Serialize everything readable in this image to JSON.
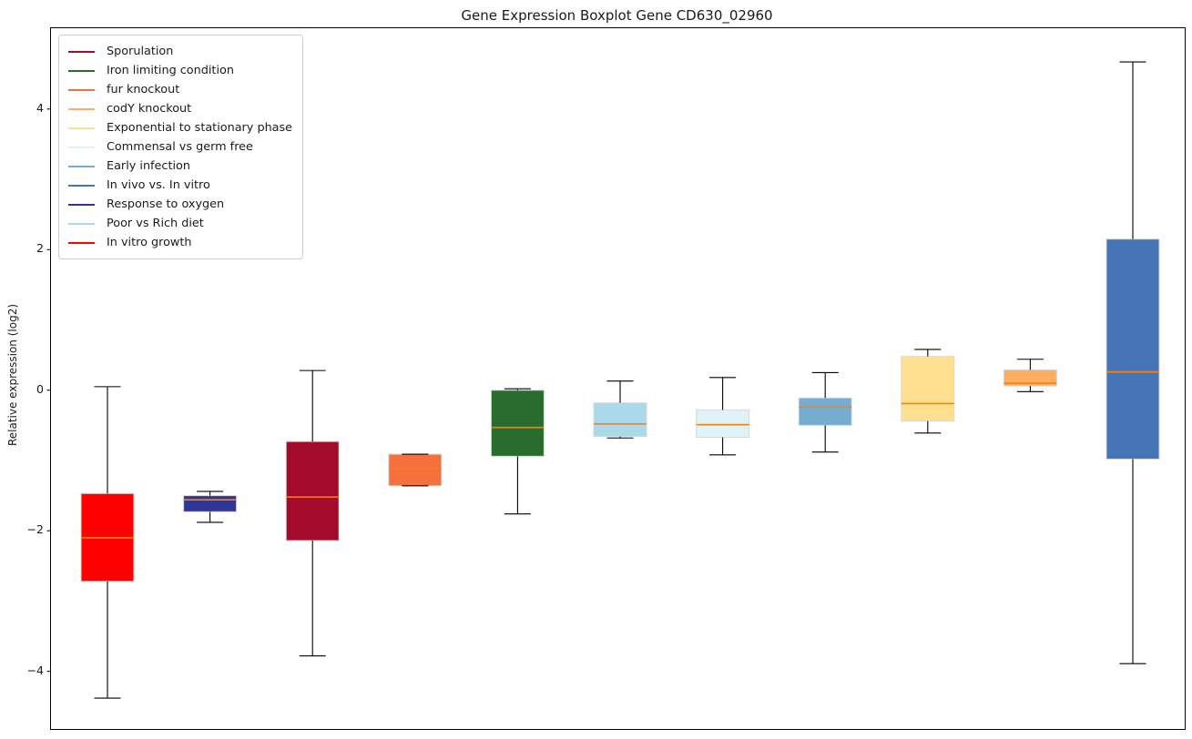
{
  "chart_data": {
    "type": "boxplot",
    "title": "Gene Expression Boxplot Gene CD630_02960",
    "xlabel": "",
    "ylabel": "Relative expression (log2)",
    "ylim": [
      -4.82,
      5.15
    ],
    "grid": false,
    "legend_position": "upper left",
    "yticks": [
      {
        "value": 4,
        "label": "4"
      },
      {
        "value": 2,
        "label": "2"
      },
      {
        "value": 0,
        "label": "0"
      },
      {
        "value": -2,
        "label": "−2"
      },
      {
        "value": -4,
        "label": "−4"
      }
    ],
    "style": {
      "median_color": "#ff7f0e",
      "whisker_color": "#000000",
      "box_edge_color": "#d9d9d9"
    },
    "series": [
      {
        "label": "In vitro growth",
        "color": "#ff0000",
        "whislo": -4.38,
        "q1": -2.72,
        "med": -2.1,
        "q3": -1.47,
        "whishi": 0.05
      },
      {
        "label": "Response to oxygen",
        "color": "#313695",
        "whislo": -1.88,
        "q1": -1.73,
        "med": -1.56,
        "q3": -1.5,
        "whishi": -1.44
      },
      {
        "label": "Sporulation",
        "color": "#a30b2d",
        "whislo": -3.78,
        "q1": -2.14,
        "med": -1.52,
        "q3": -0.73,
        "whishi": 0.28
      },
      {
        "label": "fur knockout",
        "color": "#f4713e",
        "whislo": -1.36,
        "q1": -1.36,
        "med": -1.12,
        "q3": -0.91,
        "whishi": -0.91
      },
      {
        "label": "Iron limiting condition",
        "color": "#2a6c2d",
        "whislo": -1.76,
        "q1": -0.94,
        "med": -0.53,
        "q3": 0.0,
        "whishi": 0.02
      },
      {
        "label": "Poor vs Rich diet",
        "color": "#abd9e9",
        "whislo": -0.68,
        "q1": -0.66,
        "med": -0.48,
        "q3": -0.18,
        "whishi": 0.13
      },
      {
        "label": "Commensal vs germ free",
        "color": "#e0f3f8",
        "whislo": -0.92,
        "q1": -0.67,
        "med": -0.49,
        "q3": -0.28,
        "whishi": 0.18
      },
      {
        "label": "Early infection",
        "color": "#74add1",
        "whislo": -0.88,
        "q1": -0.5,
        "med": -0.24,
        "q3": -0.11,
        "whishi": 0.25
      },
      {
        "label": "Exponential to stationary phase",
        "color": "#fee090",
        "whislo": -0.61,
        "q1": -0.44,
        "med": -0.19,
        "q3": 0.48,
        "whishi": 0.58
      },
      {
        "label": "codY knockout",
        "color": "#fdae61",
        "whislo": -0.02,
        "q1": 0.06,
        "med": 0.1,
        "q3": 0.29,
        "whishi": 0.44
      },
      {
        "label": "In vivo vs. In vitro",
        "color": "#4575b4",
        "whislo": -3.89,
        "q1": -0.98,
        "med": 0.26,
        "q3": 2.15,
        "whishi": 4.67
      }
    ],
    "legend": [
      {
        "label": "Sporulation",
        "color": "#a30b2d"
      },
      {
        "label": "Iron limiting condition",
        "color": "#2a6c2d"
      },
      {
        "label": "fur knockout",
        "color": "#f4713e"
      },
      {
        "label": "codY knockout",
        "color": "#fdae61"
      },
      {
        "label": "Exponential to stationary phase",
        "color": "#fee090"
      },
      {
        "label": "Commensal vs germ free",
        "color": "#e0f3f8"
      },
      {
        "label": "Early infection",
        "color": "#74add1"
      },
      {
        "label": "In vivo vs. In vitro",
        "color": "#4575b4"
      },
      {
        "label": "Response to oxygen",
        "color": "#313695"
      },
      {
        "label": "Poor vs Rich diet",
        "color": "#abd9e9"
      },
      {
        "label": "In vitro growth",
        "color": "#ff0000"
      }
    ]
  }
}
